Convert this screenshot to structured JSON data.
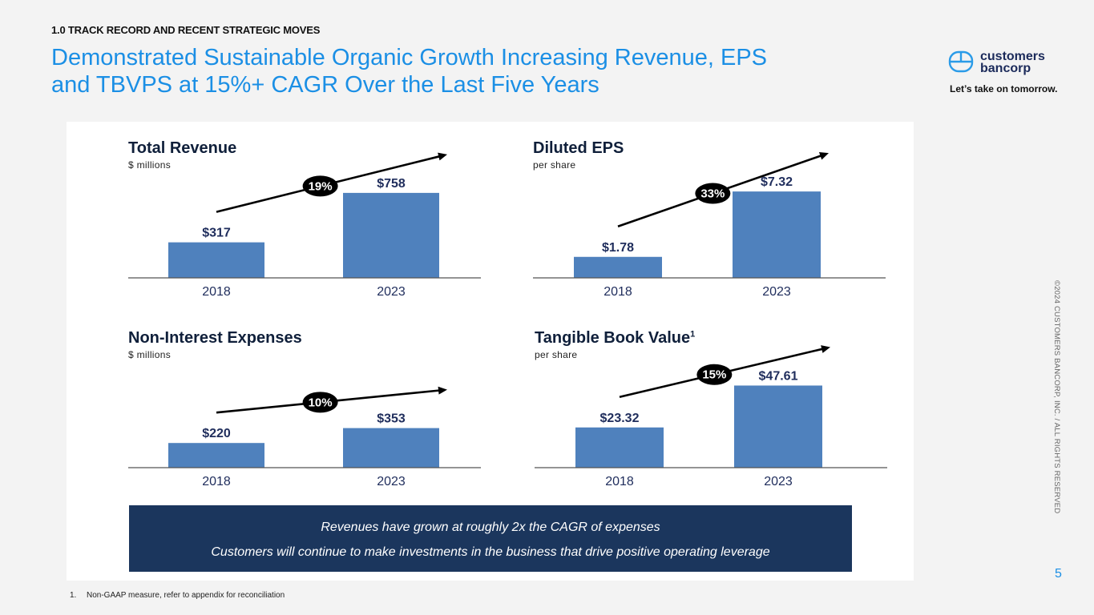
{
  "header": {
    "section_label": "1.0 TRACK RECORD AND RECENT STRATEGIC MOVES",
    "title_line1": "Demonstrated Sustainable Organic Growth Increasing Revenue, EPS",
    "title_line2": "and TBVPS at 15%+ CAGR Over the Last Five Years"
  },
  "brand": {
    "logo_icon": "customers-bancorp-logo-icon",
    "name_line1": "customers",
    "name_line2": "bancorp",
    "tagline": "Let’s take on tomorrow."
  },
  "colors": {
    "title_blue": "#1b8fe5",
    "bar_blue": "#4f81bd",
    "navy": "#1b365d",
    "label_navy": "#1f2d5c"
  },
  "chart_data": [
    {
      "type": "bar",
      "title": "Total Revenue",
      "subtitle": "$ millions",
      "categories": [
        "2018",
        "2023"
      ],
      "values": [
        317,
        758
      ],
      "labels": [
        "$317",
        "$758"
      ],
      "cagr_label": "19%",
      "ylim": [
        0,
        1000
      ]
    },
    {
      "type": "bar",
      "title": "Diluted EPS",
      "subtitle": "per share",
      "categories": [
        "2018",
        "2023"
      ],
      "values": [
        1.78,
        7.32
      ],
      "labels": [
        "$1.78",
        "$7.32"
      ],
      "cagr_label": "33%",
      "ylim": [
        0,
        9.5
      ]
    },
    {
      "type": "bar",
      "title": "Non-Interest Expenses",
      "subtitle": "$ millions",
      "categories": [
        "2018",
        "2023"
      ],
      "values": [
        220,
        353
      ],
      "labels": [
        "$220",
        "$353"
      ],
      "cagr_label": "10%",
      "ylim": [
        0,
        1000
      ]
    },
    {
      "type": "bar",
      "title": "Tangible Book Value",
      "title_superscript": "1",
      "subtitle": "per share",
      "categories": [
        "2018",
        "2023"
      ],
      "values": [
        23.32,
        47.61
      ],
      "labels": [
        "$23.32",
        "$47.61"
      ],
      "cagr_label": "15%",
      "ylim": [
        0,
        65
      ]
    }
  ],
  "banner": {
    "line1": "Revenues have grown at roughly 2x the CAGR of expenses",
    "line2": "Customers will continue to make investments in the business that drive positive operating leverage"
  },
  "footnote": {
    "number": "1.",
    "text": "Non-GAAP measure, refer to appendix for reconciliation"
  },
  "copyright": "©2024 CUSTOMERS BANCORP, INC. / ALL RIGHTS RESERVED",
  "page_number": "5"
}
